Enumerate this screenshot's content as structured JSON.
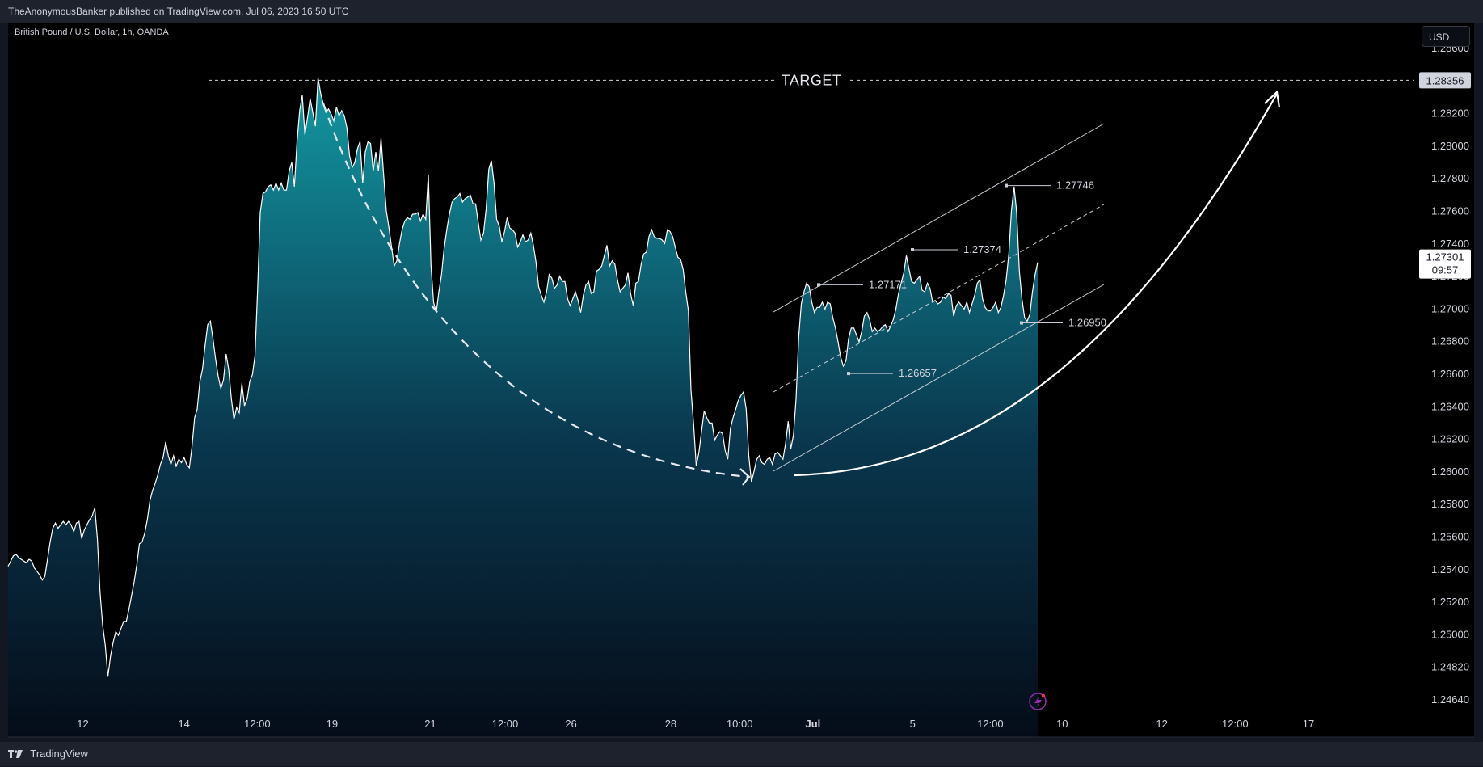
{
  "header": {
    "published": "TheAnonymousBanker published on TradingView.com, Jul 06, 2023 16:50 UTC"
  },
  "footer": {
    "brand": "TradingView"
  },
  "colors": {
    "background": "#000000",
    "line": "#ffffff",
    "fill_top": "#14a0ab",
    "fill_bottom": "#050d1a",
    "axis_text": "#d1d4dc"
  },
  "chart_data": {
    "type": "area",
    "title": "British Pound / U.S. Dollar, 1h, OANDA",
    "currency": "USD",
    "y_ticks": [
      "1.28600",
      "1.28400",
      "1.28200",
      "1.28000",
      "1.27800",
      "1.27600",
      "1.27400",
      "1.27200",
      "1.27000",
      "1.26800",
      "1.26600",
      "1.26400",
      "1.26200",
      "1.26000",
      "1.25800",
      "1.25600",
      "1.25400",
      "1.25200",
      "1.25000",
      "1.24820",
      "1.24640"
    ],
    "x_ticks": [
      "12",
      "14",
      "12:00",
      "19",
      "21",
      "12:00",
      "26",
      "28",
      "10:00",
      "Jul",
      "5",
      "12:00",
      "10",
      "12",
      "12:00",
      "17"
    ],
    "x_tick_positions": [
      0.051,
      0.12,
      0.17,
      0.221,
      0.288,
      0.339,
      0.384,
      0.452,
      0.499,
      0.549,
      0.617,
      0.67,
      0.719,
      0.787,
      0.837,
      0.887
    ],
    "y_range": [
      1.2455,
      1.2869
    ],
    "series": [
      {
        "values": [
          1.2554,
          1.2557,
          1.256,
          1.2561,
          1.2559,
          1.2558,
          1.2557,
          1.2556,
          1.2558,
          1.2557,
          1.2553,
          1.2551,
          1.2549,
          1.2546,
          1.2548,
          1.2558,
          1.2568,
          1.2576,
          1.2579,
          1.2576,
          1.2578,
          1.258,
          1.2578,
          1.258,
          1.2578,
          1.2574,
          1.2579,
          1.258,
          1.257,
          1.2575,
          1.2578,
          1.2581,
          1.2583,
          1.2588,
          1.257,
          1.2539,
          1.252,
          1.2508,
          1.249,
          1.2502,
          1.251,
          1.2516,
          1.2514,
          1.2518,
          1.2522,
          1.2522,
          1.2529,
          1.2537,
          1.2545,
          1.2555,
          1.2567,
          1.2568,
          1.2573,
          1.2581,
          1.2592,
          1.2598,
          1.2602,
          1.2607,
          1.2613,
          1.2617,
          1.2626,
          1.2618,
          1.2613,
          1.2618,
          1.2612,
          1.2616,
          1.2614,
          1.2617,
          1.2613,
          1.2611,
          1.2623,
          1.264,
          1.2645,
          1.2661,
          1.2668,
          1.2682,
          1.2694,
          1.2696,
          1.2686,
          1.2674,
          1.2664,
          1.2657,
          1.2662,
          1.2677,
          1.2668,
          1.2651,
          1.2639,
          1.2646,
          1.2643,
          1.266,
          1.2647,
          1.2651,
          1.2661,
          1.2665,
          1.2676,
          1.2715,
          1.2759,
          1.277,
          1.2771,
          1.2774,
          1.2775,
          1.2772,
          1.2776,
          1.2772,
          1.2776,
          1.2772,
          1.2772,
          1.2783,
          1.2788,
          1.2774,
          1.28,
          1.2818,
          1.2827,
          1.2804,
          1.2814,
          1.2825,
          1.2817,
          1.2809,
          1.2837,
          1.2828,
          1.2822,
          1.2817,
          1.2819,
          1.2816,
          1.2812,
          1.282,
          1.2815,
          1.2818,
          1.2815,
          1.2808,
          1.2792,
          1.2785,
          1.2788,
          1.2796,
          1.28,
          1.2776,
          1.2794,
          1.28,
          1.2799,
          1.2783,
          1.2794,
          1.2783,
          1.2802,
          1.278,
          1.276,
          1.275,
          1.2739,
          1.2728,
          1.2731,
          1.2741,
          1.2749,
          1.2754,
          1.2756,
          1.2755,
          1.2758,
          1.2758,
          1.2759,
          1.2754,
          1.2758,
          1.2755,
          1.2781,
          1.2728,
          1.2707,
          1.2701,
          1.2713,
          1.2723,
          1.2738,
          1.2749,
          1.2758,
          1.2765,
          1.2767,
          1.2768,
          1.277,
          1.2765,
          1.2767,
          1.2768,
          1.2769,
          1.2764,
          1.2764,
          1.2753,
          1.2743,
          1.2747,
          1.2761,
          1.2784,
          1.2789,
          1.2776,
          1.2755,
          1.2751,
          1.2742,
          1.2748,
          1.2756,
          1.275,
          1.2749,
          1.2747,
          1.2739,
          1.2742,
          1.2746,
          1.2742,
          1.2743,
          1.2747,
          1.274,
          1.273,
          1.2716,
          1.2711,
          1.2707,
          1.2713,
          1.2723,
          1.2721,
          1.2715,
          1.2717,
          1.2722,
          1.2719,
          1.2719,
          1.2709,
          1.2705,
          1.2709,
          1.2713,
          1.2708,
          1.2701,
          1.2711,
          1.2717,
          1.2719,
          1.2712,
          1.2713,
          1.2725,
          1.2726,
          1.2728,
          1.2734,
          1.274,
          1.2728,
          1.2731,
          1.2729,
          1.272,
          1.2713,
          1.2715,
          1.2717,
          1.2724,
          1.2712,
          1.2705,
          1.2718,
          1.2719,
          1.2729,
          1.2735,
          1.2736,
          1.2745,
          1.2749,
          1.2745,
          1.2744,
          1.2744,
          1.2743,
          1.2741,
          1.2749,
          1.2748,
          1.2745,
          1.2739,
          1.2733,
          1.2732,
          1.2726,
          1.2713,
          1.2702,
          1.2656,
          1.2636,
          1.2612,
          1.262,
          1.2632,
          1.2644,
          1.264,
          1.2637,
          1.2637,
          1.2627,
          1.263,
          1.2632,
          1.2631,
          1.2621,
          1.2616,
          1.2634,
          1.264,
          1.2645,
          1.265,
          1.2653,
          1.2655,
          1.2645,
          1.2618,
          1.2603,
          1.2609,
          1.2616,
          1.2618,
          1.2614,
          1.2613,
          1.2616,
          1.2617,
          1.2613,
          1.2619,
          1.262,
          1.2618,
          1.2616,
          1.2625,
          1.2638,
          1.2622,
          1.263,
          1.2651,
          1.2687,
          1.2706,
          1.2713,
          1.2718,
          1.2716,
          1.2707,
          1.2701,
          1.2704,
          1.2704,
          1.2707,
          1.2703,
          1.2707,
          1.2706,
          1.2698,
          1.2692,
          1.2684,
          1.2675,
          1.267,
          1.2673,
          1.2686,
          1.2692,
          1.2692,
          1.2688,
          1.2684,
          1.269,
          1.2699,
          1.2701,
          1.2697,
          1.269,
          1.2692,
          1.269,
          1.2691,
          1.2693,
          1.2694,
          1.269,
          1.2693,
          1.2697,
          1.2703,
          1.2712,
          1.2718,
          1.2724,
          1.2734,
          1.2726,
          1.2719,
          1.2718,
          1.272,
          1.2722,
          1.2714,
          1.2713,
          1.2718,
          1.2715,
          1.2707,
          1.2708,
          1.2706,
          1.2707,
          1.271,
          1.2709,
          1.2712,
          1.2711,
          1.2699,
          1.2705,
          1.2707,
          1.2705,
          1.2703,
          1.2707,
          1.2701,
          1.2706,
          1.2711,
          1.2718,
          1.272,
          1.2709,
          1.2704,
          1.2702,
          1.2702,
          1.2704,
          1.2707,
          1.2701,
          1.2704,
          1.2711,
          1.272,
          1.2735,
          1.276,
          1.2774,
          1.2759,
          1.2725,
          1.2709,
          1.2698,
          1.2696,
          1.27,
          1.2713,
          1.2723,
          1.273
        ]
      }
    ],
    "last_value": "1.27301",
    "countdown": "09:57",
    "target_value": "1.28356",
    "target_label": "TARGET",
    "level_labels": [
      {
        "value": 1.27746,
        "text": "1.27746"
      },
      {
        "value": 1.27374,
        "text": "1.27374"
      },
      {
        "value": 1.27171,
        "text": "1.27171"
      },
      {
        "value": 1.2695,
        "text": "1.26950"
      },
      {
        "value": 1.26657,
        "text": "1.26657"
      }
    ],
    "grid": false
  }
}
